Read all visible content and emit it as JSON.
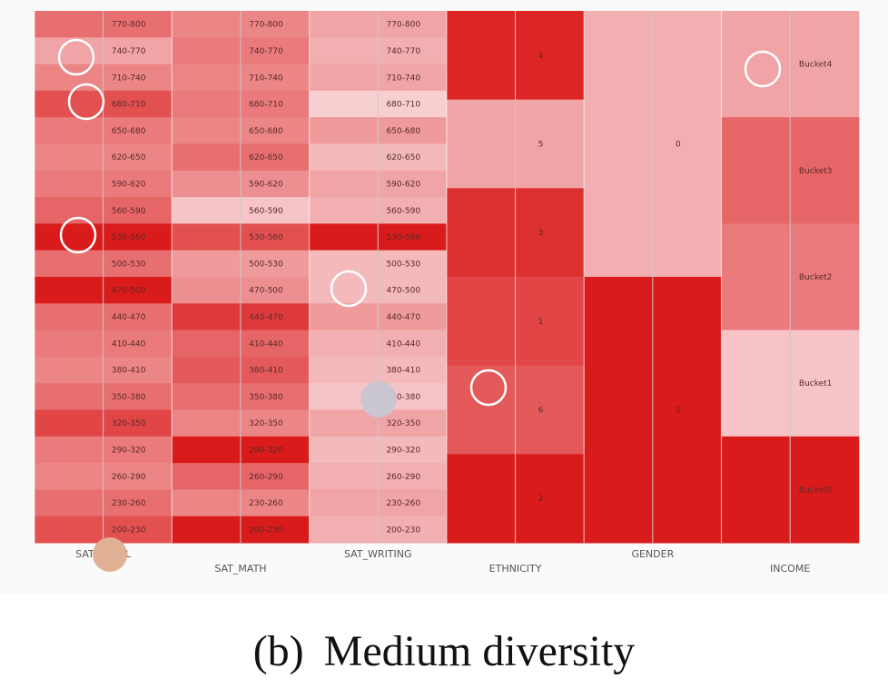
{
  "caption": {
    "tag": "(b)",
    "text": "Medium diversity"
  },
  "chart_data": {
    "type": "heatmap",
    "columns": [
      {
        "name": "SAT_TOTAL",
        "buckets": [
          "770-800",
          "740-770",
          "710-740",
          "680-710",
          "650-680",
          "620-650",
          "590-620",
          "560-590",
          "530-560",
          "500-530",
          "470-500",
          "440-470",
          "410-440",
          "380-410",
          "350-380",
          "320-350",
          "290-320",
          "260-290",
          "230-260",
          "200-230"
        ],
        "intensity": [
          0.55,
          0.3,
          0.45,
          0.7,
          0.5,
          0.45,
          0.5,
          0.6,
          0.95,
          0.55,
          0.95,
          0.55,
          0.5,
          0.45,
          0.55,
          0.75,
          0.5,
          0.45,
          0.55,
          0.7
        ]
      },
      {
        "name": "SAT_MATH",
        "buckets": [
          "770-800",
          "740-770",
          "710-740",
          "680-710",
          "650-680",
          "620-650",
          "590-620",
          "560-590",
          "530-560",
          "500-530",
          "470-500",
          "440-470",
          "410-440",
          "380-410",
          "350-380",
          "320-350",
          "290-320",
          "260-290",
          "230-260",
          "200-230"
        ],
        "intensity": [
          0.45,
          0.5,
          0.45,
          0.5,
          0.45,
          0.55,
          0.4,
          0.15,
          0.7,
          0.35,
          0.4,
          0.8,
          0.6,
          0.65,
          0.55,
          0.45,
          0.95,
          0.6,
          0.45,
          0.95
        ]
      },
      {
        "name": "SAT_WRITING",
        "buckets": [
          "770-800",
          "740-770",
          "710-740",
          "680-710",
          "650-680",
          "620-650",
          "590-620",
          "560-590",
          "530-560",
          "500-530",
          "470-500",
          "440-470",
          "410-440",
          "380-410",
          "350-380",
          "320-350",
          "290-320",
          "260-290",
          "230-260",
          "200-230"
        ],
        "intensity": [
          0.3,
          0.25,
          0.3,
          0.1,
          0.35,
          0.2,
          0.3,
          0.25,
          0.95,
          0.2,
          0.2,
          0.35,
          0.25,
          0.2,
          0.15,
          0.3,
          0.2,
          0.25,
          0.3,
          0.25
        ]
      },
      {
        "name": "ETHNICITY",
        "buckets": [
          "4",
          "5",
          "3",
          "1",
          "6",
          "2"
        ],
        "intensity": [
          0.9,
          0.3,
          0.85,
          0.75,
          0.65,
          0.95
        ]
      },
      {
        "name": "GENDER",
        "buckets": [
          "0",
          "1"
        ],
        "intensity": [
          0.25,
          0.95
        ]
      },
      {
        "name": "INCOME",
        "buckets": [
          "Bucket4",
          "Bucket3",
          "Bucket2",
          "Bucket1",
          "Bucket0"
        ],
        "intensity": [
          0.3,
          0.6,
          0.5,
          0.15,
          0.95
        ]
      }
    ],
    "palette": {
      "light": "#fbe4e6",
      "dark": "#d81010"
    },
    "markers_colors": {
      "outline": "#ffffff",
      "gray": "#c9c6cf",
      "tan": "#e0b195",
      "black": "#111111"
    }
  }
}
